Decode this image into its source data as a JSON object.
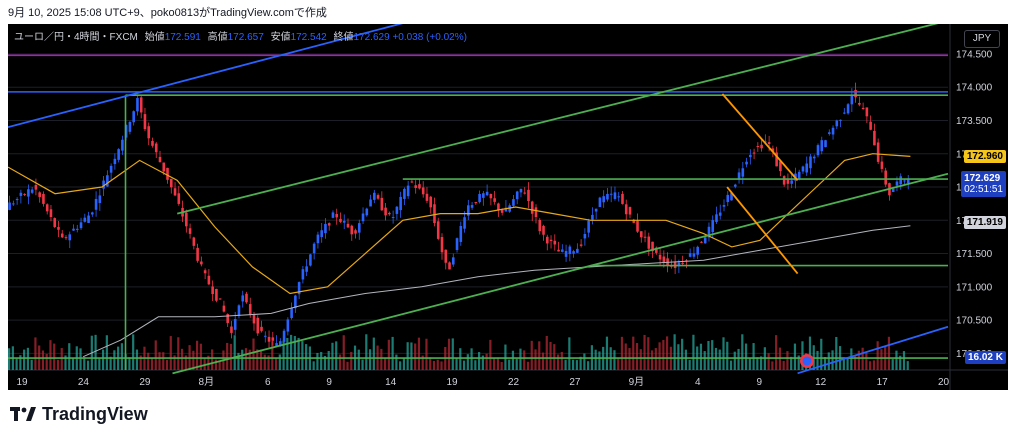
{
  "caption": "9月 10, 2025 15:08 UTC+9、poko0813がTradingView.comで作成",
  "legend": {
    "symbol": "ユーロ／円・4時間・FXCM",
    "open_label": "始値",
    "open": "172.591",
    "high_label": "高値",
    "high": "172.657",
    "low_label": "安値",
    "low": "172.542",
    "close_label": "終値",
    "close": "172.629",
    "change": "+0.038 (+0.02%)"
  },
  "currency": "JPY",
  "price_tags": {
    "level_upper": "172.960",
    "last_price": "172.629",
    "countdown": "02:51:51",
    "ma_value": "171.919",
    "volume": "16.02 K"
  },
  "brand": "TradingView",
  "colors": {
    "background": "#000000",
    "bull": "#2962ff",
    "bear": "#f23645",
    "ma_fast": "#e6a817",
    "ma_slow": "#b2b5be",
    "trend_green": "#4caf50",
    "trend_orange": "#ff9800",
    "line_purple": "#9c27b0",
    "line_blue": "#2962ff",
    "vol_bull": "#26a69a",
    "vol_bear": "#b22833"
  },
  "chart_data": {
    "type": "candlestick",
    "y_ticks": [
      174.5,
      174.0,
      173.5,
      173.0,
      172.5,
      172.0,
      171.5,
      171.0,
      170.5,
      170.0
    ],
    "y_tick_labels": [
      "174.500",
      "174.000",
      "173.500",
      "173.000",
      "172.500",
      "172.000",
      "171.500",
      "171.000",
      "170.500",
      "170.000"
    ],
    "ylim": [
      169.75,
      174.95
    ],
    "x_ticks": [
      "19",
      "24",
      "29",
      "8月",
      "6",
      "9",
      "14",
      "19",
      "22",
      "27",
      "9月",
      "4",
      "9",
      "12",
      "17",
      "20"
    ],
    "price_path": [
      [
        0,
        172.2
      ],
      [
        3,
        172.5
      ],
      [
        6,
        171.7
      ],
      [
        9,
        172.1
      ],
      [
        12,
        173.1
      ],
      [
        14,
        173.8
      ],
      [
        15,
        173.3
      ],
      [
        17,
        172.7
      ],
      [
        19,
        172.0
      ],
      [
        21,
        171.2
      ],
      [
        23,
        170.7
      ],
      [
        24,
        170.3
      ],
      [
        25,
        170.9
      ],
      [
        27,
        170.3
      ],
      [
        29,
        170.1
      ],
      [
        31,
        171.0
      ],
      [
        33,
        171.7
      ],
      [
        35,
        172.1
      ],
      [
        37,
        171.8
      ],
      [
        39,
        172.4
      ],
      [
        41,
        172.0
      ],
      [
        43,
        172.6
      ],
      [
        45,
        172.3
      ],
      [
        47,
        171.2
      ],
      [
        49,
        172.2
      ],
      [
        51,
        172.4
      ],
      [
        53,
        172.1
      ],
      [
        55,
        172.5
      ],
      [
        57,
        171.8
      ],
      [
        59,
        171.5
      ],
      [
        61,
        171.6
      ],
      [
        63,
        172.3
      ],
      [
        65,
        172.4
      ],
      [
        67,
        171.9
      ],
      [
        69,
        171.5
      ],
      [
        71,
        171.3
      ],
      [
        73,
        171.5
      ],
      [
        75,
        171.9
      ],
      [
        77,
        172.4
      ],
      [
        79,
        173.0
      ],
      [
        81,
        173.2
      ],
      [
        83,
        172.5
      ],
      [
        85,
        172.8
      ],
      [
        87,
        173.2
      ],
      [
        89,
        173.6
      ],
      [
        90,
        173.9
      ],
      [
        91,
        173.7
      ],
      [
        92,
        173.4
      ],
      [
        93,
        172.8
      ],
      [
        94,
        172.4
      ],
      [
        95,
        172.6
      ],
      [
        96,
        172.629
      ]
    ],
    "ma_fast": [
      [
        0,
        172.8
      ],
      [
        5,
        172.4
      ],
      [
        10,
        172.5
      ],
      [
        14,
        172.9
      ],
      [
        18,
        172.6
      ],
      [
        22,
        171.9
      ],
      [
        26,
        171.3
      ],
      [
        30,
        170.9
      ],
      [
        34,
        171.0
      ],
      [
        38,
        171.5
      ],
      [
        42,
        172.0
      ],
      [
        46,
        172.1
      ],
      [
        50,
        172.1
      ],
      [
        54,
        172.2
      ],
      [
        58,
        172.1
      ],
      [
        62,
        172.0
      ],
      [
        66,
        172.0
      ],
      [
        70,
        172.0
      ],
      [
        74,
        171.8
      ],
      [
        77,
        171.6
      ],
      [
        80,
        171.7
      ],
      [
        83,
        172.1
      ],
      [
        86,
        172.5
      ],
      [
        89,
        172.9
      ],
      [
        92,
        173.0
      ],
      [
        96,
        172.96
      ]
    ],
    "ma_slow": [
      [
        8,
        169.95
      ],
      [
        12,
        170.2
      ],
      [
        16,
        170.55
      ],
      [
        22,
        170.55
      ],
      [
        28,
        170.6
      ],
      [
        32,
        170.75
      ],
      [
        38,
        170.9
      ],
      [
        44,
        171.0
      ],
      [
        50,
        171.15
      ],
      [
        56,
        171.25
      ],
      [
        62,
        171.3
      ],
      [
        68,
        171.35
      ],
      [
        74,
        171.4
      ],
      [
        80,
        171.55
      ],
      [
        86,
        171.7
      ],
      [
        92,
        171.85
      ],
      [
        96,
        171.919
      ]
    ],
    "hlines": [
      {
        "y": 174.48,
        "color": "purple"
      },
      {
        "y": 173.93,
        "color": "blue"
      },
      {
        "y": 173.88,
        "color": "green",
        "x0": 12.5,
        "x1": 100
      },
      {
        "y": 172.62,
        "color": "green",
        "x0": 42,
        "x1": 100
      },
      {
        "y": 171.32,
        "color": "green",
        "x0": 62,
        "x1": 100
      },
      {
        "y": 169.93,
        "color": "green",
        "x0": 0,
        "x1": 100
      }
    ],
    "trendlines": [
      {
        "color": "blue",
        "p1": [
          0,
          173.4
        ],
        "p2": [
          43,
          175.0
        ]
      },
      {
        "color": "blue",
        "p1": [
          84,
          169.7
        ],
        "p2": [
          100,
          170.4
        ]
      },
      {
        "color": "green",
        "p1": [
          18,
          172.1
        ],
        "p2": [
          100,
          175.0
        ]
      },
      {
        "color": "green",
        "p1": [
          17.5,
          169.7
        ],
        "p2": [
          100,
          172.7
        ]
      },
      {
        "color": "orange",
        "p1": [
          76,
          173.9
        ],
        "p2": [
          84,
          172.6
        ]
      },
      {
        "color": "orange",
        "p1": [
          76.5,
          172.5
        ],
        "p2": [
          84,
          171.2
        ]
      }
    ],
    "vline": {
      "x": 12.5,
      "y0": 173.88,
      "y1": 169.75,
      "color": "green"
    }
  }
}
